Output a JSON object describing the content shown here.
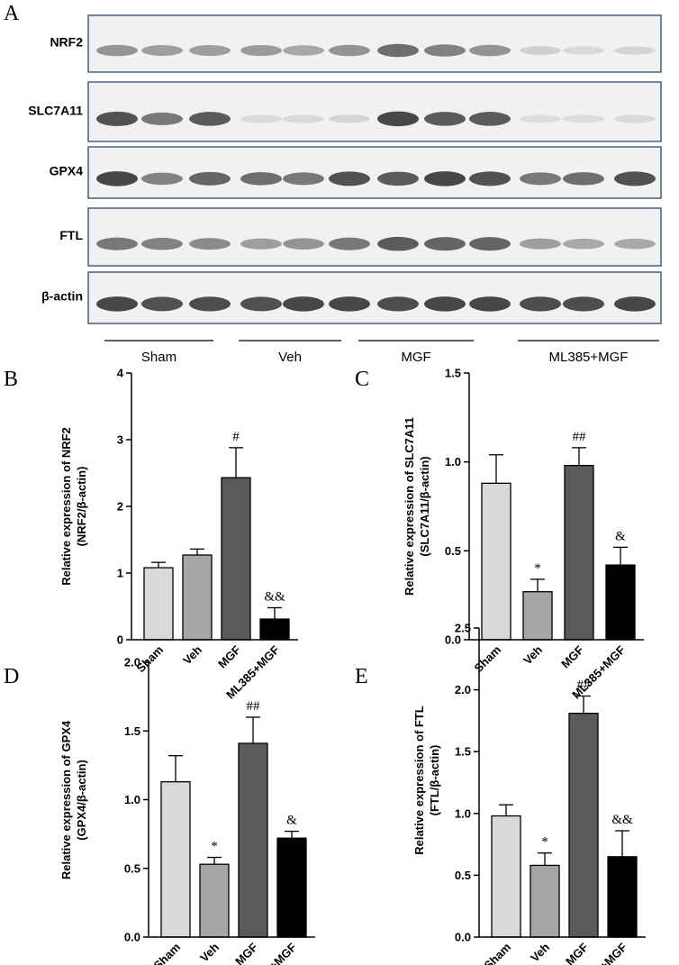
{
  "panel_a": {
    "letter": "A",
    "blots": [
      {
        "label": "NRF2",
        "lanes": [
          0.45,
          0.4,
          0.4,
          0.42,
          0.35,
          0.45,
          0.65,
          0.55,
          0.45,
          0.15,
          0.1,
          0.12
        ]
      },
      {
        "label": "SLC7A11",
        "lanes": [
          0.8,
          0.6,
          0.75,
          0.1,
          0.1,
          0.12,
          0.85,
          0.75,
          0.75,
          0.08,
          0.08,
          0.1
        ]
      },
      {
        "label": "GPX4",
        "lanes": [
          0.85,
          0.55,
          0.7,
          0.65,
          0.6,
          0.8,
          0.75,
          0.85,
          0.8,
          0.6,
          0.65,
          0.8
        ]
      },
      {
        "label": "FTL",
        "lanes": [
          0.6,
          0.55,
          0.5,
          0.4,
          0.45,
          0.6,
          0.75,
          0.7,
          0.7,
          0.4,
          0.35,
          0.35
        ]
      },
      {
        "label": "β-actin",
        "lanes": [
          0.85,
          0.8,
          0.82,
          0.8,
          0.85,
          0.85,
          0.82,
          0.85,
          0.85,
          0.82,
          0.82,
          0.85
        ]
      }
    ],
    "groups": [
      "Sham",
      "Veh",
      "MGF",
      "ML385+MGF"
    ]
  },
  "chart_data": [
    {
      "letter": "B",
      "type": "bar",
      "categories": [
        "Sham",
        "Veh",
        "MGF",
        "ML385+MGF"
      ],
      "values": [
        1.08,
        1.27,
        2.43,
        0.31
      ],
      "errors": [
        0.08,
        0.09,
        0.45,
        0.17
      ],
      "annotations": [
        "",
        "",
        "#",
        "&&"
      ],
      "ylabel": "Relative expression of NRF2 (NRF2/β-actin)",
      "ylabel_lines": [
        "Relative expression of NRF2",
        "(NRF2/β-actin)"
      ],
      "ylim": [
        0,
        4
      ],
      "yticks": [
        "0",
        "1",
        "2",
        "3",
        "4"
      ],
      "colors": [
        "#d9d9d9",
        "#a6a6a6",
        "#5a5a5a",
        "#000000"
      ]
    },
    {
      "letter": "C",
      "type": "bar",
      "categories": [
        "Sham",
        "Veh",
        "MGF",
        "ML385+MGF"
      ],
      "values": [
        0.88,
        0.27,
        0.98,
        0.42
      ],
      "errors": [
        0.16,
        0.07,
        0.1,
        0.1
      ],
      "annotations": [
        "",
        "*",
        "##",
        "&"
      ],
      "ylabel": "Relative expression of SLC7A11 (SLC7A11/β-actin)",
      "ylabel_lines": [
        "Relative expression of SLC7A11",
        "(SLC7A11/β-actin)"
      ],
      "ylim": [
        0,
        1.5
      ],
      "yticks": [
        "0.0",
        "0.5",
        "1.0",
        "1.5"
      ],
      "colors": [
        "#d9d9d9",
        "#a6a6a6",
        "#5a5a5a",
        "#000000"
      ]
    },
    {
      "letter": "D",
      "type": "bar",
      "categories": [
        "Sham",
        "Veh",
        "MGF",
        "ML385+MGF"
      ],
      "values": [
        1.13,
        0.53,
        1.41,
        0.72
      ],
      "errors": [
        0.19,
        0.05,
        0.19,
        0.05
      ],
      "annotations": [
        "",
        "*",
        "##",
        "&"
      ],
      "ylabel": "Relative expression of GPX4 (GPX4/β-actin)",
      "ylabel_lines": [
        "Relative expression of GPX4",
        "(GPX4/β-actin)"
      ],
      "ylim": [
        0,
        2
      ],
      "yticks": [
        "0.0",
        "0.5",
        "1.0",
        "1.5",
        "2.0"
      ],
      "colors": [
        "#d9d9d9",
        "#a6a6a6",
        "#5a5a5a",
        "#000000"
      ]
    },
    {
      "letter": "E",
      "type": "bar",
      "categories": [
        "Sham",
        "Veh",
        "MGF",
        "ML385+MGF"
      ],
      "values": [
        0.98,
        0.58,
        1.81,
        0.65
      ],
      "errors": [
        0.09,
        0.1,
        0.14,
        0.21
      ],
      "annotations": [
        "",
        "*",
        "##",
        "&&"
      ],
      "ylabel": "Relative expression of FTL (FTL/β-actin)",
      "ylabel_lines": [
        "Relative expression of FTL",
        "(FTL/β-actin)"
      ],
      "ylim": [
        0,
        2.5
      ],
      "yticks": [
        "0.0",
        "0.5",
        "1.0",
        "1.5",
        "2.0",
        "2.5"
      ],
      "colors": [
        "#d9d9d9",
        "#a6a6a6",
        "#5a5a5a",
        "#000000"
      ]
    }
  ]
}
